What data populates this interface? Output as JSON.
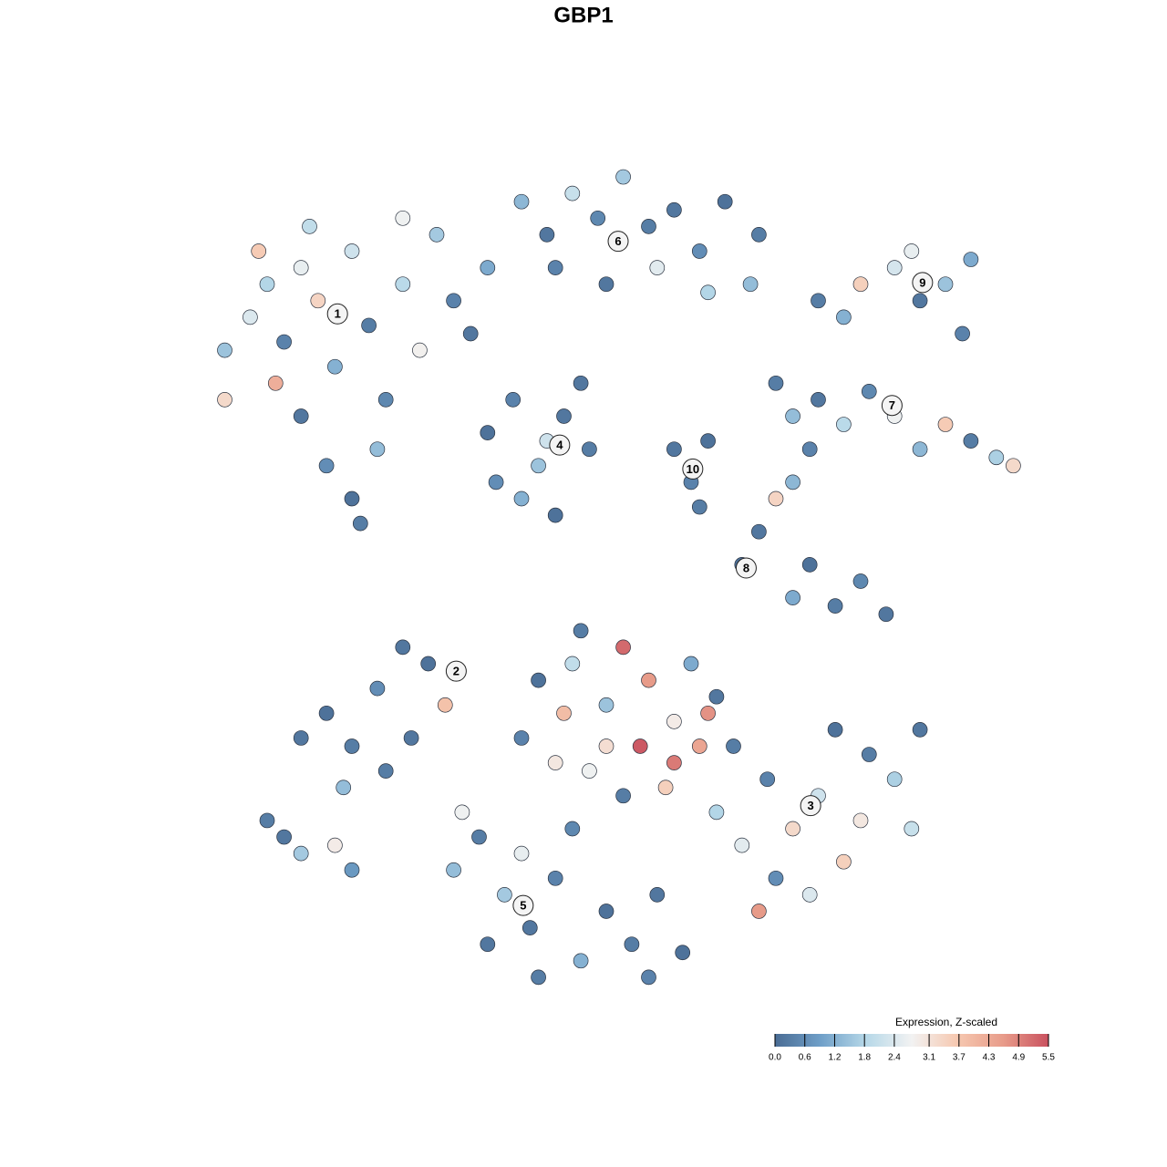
{
  "chart_data": {
    "type": "scatter",
    "title": "GBP1",
    "xlim": [
      0,
      100
    ],
    "ylim": [
      0,
      100
    ],
    "x": [
      5,
      8,
      10,
      12,
      14,
      16,
      18,
      20,
      22,
      24,
      26,
      28,
      14,
      17,
      20,
      23,
      11,
      30,
      32,
      34,
      36,
      26,
      9,
      15,
      21,
      5,
      40,
      43,
      46,
      49,
      52,
      55,
      58,
      61,
      64,
      67,
      44,
      50,
      56,
      68,
      62,
      75,
      78,
      80,
      84,
      87,
      90,
      92,
      86,
      93,
      70,
      72,
      75,
      78,
      81,
      84,
      87,
      90,
      93,
      96,
      98,
      74,
      36,
      39,
      42,
      45,
      48,
      40,
      44,
      37,
      47,
      43,
      58,
      60,
      62,
      61,
      68,
      70,
      72,
      74,
      77,
      80,
      83,
      72,
      66,
      14,
      17,
      20,
      23,
      26,
      29,
      31,
      19,
      27,
      24,
      10,
      14,
      18,
      20,
      12,
      47,
      52,
      55,
      50,
      45,
      54,
      58,
      61,
      44,
      40,
      48,
      57,
      63,
      52,
      60,
      42,
      58,
      50,
      62,
      46,
      63,
      66,
      69,
      72,
      75,
      78,
      81,
      84,
      87,
      77,
      70,
      74,
      68,
      86,
      80,
      65,
      32,
      35,
      38,
      41,
      44,
      47,
      50,
      53,
      56,
      59,
      42,
      36,
      46,
      33,
      40,
      55
    ],
    "y": [
      78,
      82,
      86,
      79,
      88,
      84,
      76,
      90,
      81,
      72,
      86,
      78,
      70,
      64,
      60,
      66,
      74,
      92,
      84,
      80,
      88,
      94,
      90,
      93,
      57,
      72,
      96,
      92,
      97,
      94,
      99,
      93,
      95,
      90,
      96,
      86,
      88,
      86,
      88,
      92,
      85,
      84,
      82,
      86,
      88,
      84,
      86,
      80,
      90,
      89,
      74,
      70,
      72,
      69,
      73,
      70,
      66,
      69,
      67,
      65,
      64,
      66,
      68,
      72,
      64,
      70,
      66,
      60,
      58,
      62,
      74,
      67,
      66,
      62,
      67,
      59,
      56,
      60,
      62,
      52,
      47,
      50,
      46,
      48,
      52,
      31,
      34,
      30,
      37,
      42,
      40,
      35,
      25,
      31,
      27,
      21,
      17,
      18,
      15,
      19,
      44,
      42,
      38,
      35,
      34,
      30,
      33,
      30,
      28,
      31,
      27,
      25,
      36,
      24,
      40,
      38,
      28,
      30,
      34,
      40,
      22,
      18,
      26,
      20,
      24,
      16,
      29,
      26,
      32,
      32,
      14,
      12,
      10,
      20,
      21,
      30,
      15,
      19,
      12,
      8,
      14,
      4,
      10,
      6,
      12,
      5,
      2,
      6,
      20,
      22,
      17,
      2
    ],
    "values": [
      1.5,
      2.4,
      1.8,
      0.4,
      2.6,
      3.4,
      1.2,
      2.2,
      0.3,
      0.5,
      1.9,
      2.8,
      0.2,
      0.6,
      0.1,
      1.4,
      4.2,
      1.6,
      0.4,
      0.2,
      1.1,
      2.7,
      3.6,
      2.0,
      0.3,
      3.3,
      1.3,
      0.2,
      2.1,
      0.5,
      1.6,
      0.3,
      0.2,
      0.6,
      0.1,
      1.4,
      0.4,
      0.2,
      2.5,
      0.3,
      1.8,
      0.3,
      1.2,
      3.5,
      2.3,
      0.2,
      1.5,
      0.4,
      2.6,
      1.1,
      0.3,
      1.4,
      0.2,
      1.9,
      0.5,
      2.7,
      1.3,
      3.6,
      0.3,
      1.7,
      3.3,
      0.4,
      0.1,
      0.4,
      1.5,
      0.2,
      0.3,
      1.2,
      0.1,
      0.6,
      0.2,
      2.2,
      0.2,
      0.4,
      0.1,
      0.3,
      0.2,
      3.4,
      1.3,
      0.1,
      0.3,
      0.5,
      0.2,
      1.1,
      0.1,
      0.2,
      0.1,
      0.3,
      0.6,
      0.2,
      0.1,
      3.8,
      1.4,
      0.2,
      0.3,
      0.3,
      1.6,
      2.9,
      0.8,
      0.2,
      0.3,
      5.2,
      4.6,
      1.5,
      3.9,
      5.4,
      2.9,
      4.4,
      3.0,
      0.4,
      2.7,
      3.5,
      0.2,
      0.3,
      1.1,
      0.1,
      5.0,
      3.2,
      4.7,
      2.0,
      1.8,
      2.5,
      0.4,
      3.3,
      2.2,
      3.5,
      0.3,
      1.7,
      0.2,
      0.1,
      0.6,
      2.4,
      4.6,
      2.1,
      3.0,
      0.3,
      1.4,
      0.3,
      1.6,
      0.2,
      0.4,
      1.2,
      0.1,
      0.3,
      0.2,
      0.1,
      0.3,
      0.2,
      0.5,
      2.7,
      2.6,
      0.4
    ],
    "clusters": {
      "labels": [
        "1",
        "6",
        "9",
        "7",
        "4",
        "10",
        "8",
        "2",
        "3",
        "5"
      ],
      "x": [
        18.3,
        51.4,
        87.3,
        83.7,
        44.5,
        60.2,
        66.5,
        32.3,
        74.1,
        40.2
      ],
      "y": [
        82.4,
        91.2,
        86.2,
        71.3,
        66.5,
        63.6,
        51.6,
        39.1,
        22.8,
        10.7
      ]
    },
    "colorbar": {
      "title": "Expression, Z-scaled",
      "clim": [
        0,
        5.5
      ],
      "colors": [
        "#4a6c94",
        "#6f9fc8",
        "#b6d8e8",
        "#f2f2f2",
        "#f6c8b0",
        "#e89c8a",
        "#c9515f"
      ],
      "ticks": [
        {
          "value": 0,
          "label": "0.0"
        },
        0.6,
        1.2,
        1.8,
        2.4,
        3.1,
        3.7,
        4.3,
        4.9,
        5.5
      ]
    }
  }
}
